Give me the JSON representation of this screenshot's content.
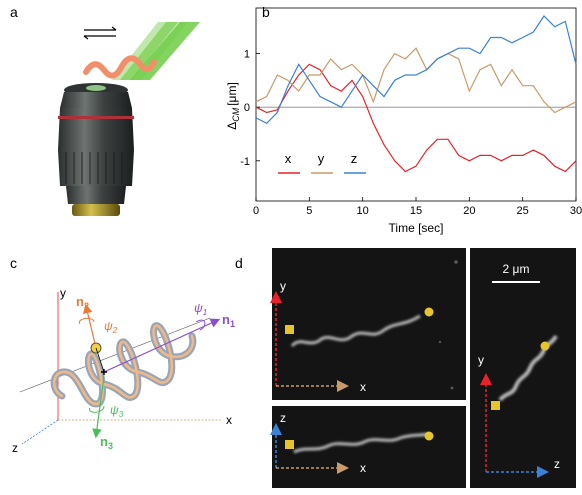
{
  "panels": {
    "a": {
      "label": "a"
    },
    "b": {
      "label": "b"
    },
    "c": {
      "label": "c",
      "axes": {
        "x": "x",
        "y": "y",
        "z": "z"
      },
      "vectors": {
        "n1": "n",
        "n1_sub": "1",
        "n2": "n",
        "n2_sub": "2",
        "n3": "n",
        "n3_sub": "3"
      },
      "angles": {
        "psi1": "ψ",
        "psi1_sub": "1",
        "psi2": "ψ",
        "psi2_sub": "2",
        "psi3": "ψ",
        "psi3_sub": "3"
      }
    },
    "d": {
      "label": "d",
      "scale_bar": "2 μm",
      "top_axes": {
        "v": "y",
        "h": "x"
      },
      "bottom_axes": {
        "v": "z",
        "h": "x"
      },
      "side_axes": {
        "v": "y",
        "h": "z"
      }
    }
  },
  "chart_data": {
    "type": "line",
    "ylabel_main": "Δ",
    "ylabel_sub": "CM",
    "ylabel_unit": "[μm]",
    "xlabel": "Time [sec]",
    "xlim": [
      0,
      30
    ],
    "ylim": [
      -1.75,
      1.85
    ],
    "xticks": [
      0,
      5,
      10,
      15,
      20,
      25,
      30
    ],
    "yticks": [
      -1,
      0,
      1
    ],
    "zero_line": true,
    "series": [
      {
        "name": "x",
        "color": "#e8222a",
        "x": [
          0,
          1,
          2,
          3,
          4,
          5,
          6,
          7,
          8,
          9,
          10,
          11,
          12,
          13,
          14,
          15,
          16,
          17,
          18,
          19,
          20,
          21,
          22,
          23,
          24,
          25,
          26,
          27,
          28,
          29,
          30
        ],
        "y": [
          0.0,
          -0.1,
          -0.05,
          0.3,
          0.6,
          0.8,
          0.7,
          0.4,
          0.3,
          0.5,
          0.2,
          -0.3,
          -0.7,
          -1.0,
          -1.2,
          -1.1,
          -0.8,
          -0.6,
          -0.6,
          -0.9,
          -1.0,
          -0.9,
          -0.9,
          -1.0,
          -0.9,
          -0.9,
          -0.8,
          -0.9,
          -1.1,
          -1.2,
          -1.0
        ]
      },
      {
        "name": "y",
        "color": "#c99a6a",
        "x": [
          0,
          1,
          2,
          3,
          4,
          5,
          6,
          7,
          8,
          9,
          10,
          11,
          12,
          13,
          14,
          15,
          16,
          17,
          18,
          19,
          20,
          21,
          22,
          23,
          24,
          25,
          26,
          27,
          28,
          29,
          30
        ],
        "y": [
          0.1,
          0.2,
          0.6,
          0.5,
          0.3,
          0.6,
          0.6,
          0.9,
          0.7,
          0.8,
          0.6,
          0.1,
          0.7,
          1.0,
          0.9,
          1.1,
          0.7,
          0.9,
          1.0,
          0.9,
          0.3,
          0.7,
          0.8,
          0.4,
          0.7,
          0.4,
          0.4,
          0.1,
          -0.1,
          0.0,
          0.1
        ]
      },
      {
        "name": "z",
        "color": "#3b82d6",
        "x": [
          0,
          1,
          2,
          3,
          4,
          5,
          6,
          7,
          8,
          9,
          10,
          11,
          12,
          13,
          14,
          15,
          16,
          17,
          18,
          19,
          20,
          21,
          22,
          23,
          24,
          25,
          26,
          27,
          28,
          29,
          30
        ],
        "y": [
          -0.2,
          -0.3,
          -0.1,
          0.4,
          0.8,
          0.5,
          0.2,
          0.1,
          0.0,
          0.3,
          0.6,
          0.4,
          0.2,
          0.5,
          0.6,
          0.6,
          0.7,
          0.9,
          1.0,
          1.1,
          1.1,
          1.0,
          1.3,
          1.3,
          1.2,
          1.3,
          1.4,
          1.7,
          1.5,
          1.6,
          0.8
        ]
      }
    ]
  }
}
